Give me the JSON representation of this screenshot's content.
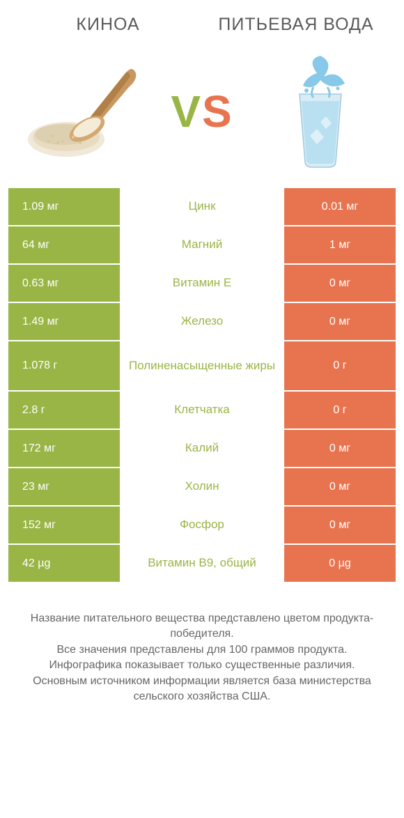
{
  "colors": {
    "green": "#99b545",
    "orange": "#e8744f",
    "text": "#5a5a5a",
    "white": "#ffffff",
    "footer_text": "#666666"
  },
  "header": {
    "left_title": "КИНОА",
    "right_title": "ПИТЬЕВАЯ ВОДА",
    "vs": "VS"
  },
  "table": {
    "left_bg": "#99b545",
    "right_bg": "#e8744f",
    "mid_color": "#99b545",
    "rows": [
      {
        "left": "1.09 мг",
        "mid": "Цинк",
        "right": "0.01 мг",
        "tall": false
      },
      {
        "left": "64 мг",
        "mid": "Магний",
        "right": "1 мг",
        "tall": false
      },
      {
        "left": "0.63 мг",
        "mid": "Витамин E",
        "right": "0 мг",
        "tall": false
      },
      {
        "left": "1.49 мг",
        "mid": "Железо",
        "right": "0 мг",
        "tall": false
      },
      {
        "left": "1.078 г",
        "mid": "Полиненасыщенные жиры",
        "right": "0 г",
        "tall": true
      },
      {
        "left": "2.8 г",
        "mid": "Клетчатка",
        "right": "0 г",
        "tall": false
      },
      {
        "left": "172 мг",
        "mid": "Калий",
        "right": "0 мг",
        "tall": false
      },
      {
        "left": "23 мг",
        "mid": "Холин",
        "right": "0 мг",
        "tall": false
      },
      {
        "left": "152 мг",
        "mid": "Фосфор",
        "right": "0 мг",
        "tall": false
      },
      {
        "left": "42 µg",
        "mid": "Витамин B9, общий",
        "right": "0 µg",
        "tall": false
      }
    ]
  },
  "footer": {
    "line1": "Название питательного вещества представлено цветом продукта-победителя.",
    "line2": "Все значения представлены для 100 граммов продукта.",
    "line3": "Инфографика показывает только существенные различия.",
    "line4": "Основным источником информации является база министерства сельского хозяйства США."
  }
}
